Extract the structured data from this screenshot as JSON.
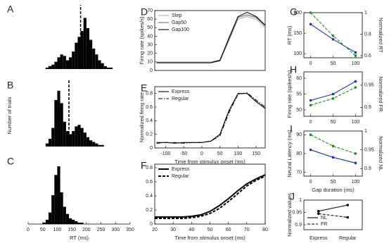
{
  "chart_data": [
    {
      "type": "histogram",
      "label": "A",
      "color": "#000000",
      "bins": [
        0,
        10,
        20,
        30,
        40,
        50,
        60,
        70,
        80,
        90,
        100,
        110,
        120,
        130,
        140,
        150,
        160,
        170,
        180,
        190,
        200,
        210,
        220,
        230,
        240,
        250,
        260,
        270,
        280,
        290,
        300,
        310,
        320,
        330,
        340,
        350
      ],
      "counts": [
        0,
        0,
        0,
        0,
        0,
        0,
        1,
        2,
        3,
        5,
        8,
        10,
        9,
        6,
        8,
        12,
        18,
        22,
        26,
        35,
        28,
        20,
        14,
        10,
        6,
        4,
        2,
        1,
        1,
        0,
        0,
        0,
        0,
        0,
        0
      ],
      "xlim": [
        0,
        350
      ],
      "ylim": [
        0,
        40
      ],
      "vline": 180
    },
    {
      "type": "histogram",
      "label": "B",
      "color": "#000000",
      "ylabel": "Number of trials",
      "bins": [
        0,
        10,
        20,
        30,
        40,
        50,
        60,
        70,
        80,
        90,
        100,
        110,
        120,
        130,
        140,
        150,
        160,
        170,
        180,
        190,
        200,
        210,
        220,
        230,
        240,
        250,
        260,
        270,
        280,
        290,
        300,
        310,
        320,
        330,
        340,
        350
      ],
      "counts": [
        0,
        0,
        0,
        0,
        0,
        0,
        2,
        5,
        12,
        30,
        36,
        28,
        16,
        10,
        8,
        10,
        13,
        14,
        12,
        9,
        6,
        4,
        3,
        2,
        1,
        1,
        0,
        0,
        0,
        0,
        0,
        0,
        0,
        0,
        0
      ],
      "xlim": [
        0,
        350
      ],
      "ylim": [
        0,
        40
      ],
      "vline": 140
    },
    {
      "type": "histogram",
      "label": "C",
      "color": "#000000",
      "xlabel": "RT (ms)",
      "bins": [
        0,
        10,
        20,
        30,
        40,
        50,
        60,
        70,
        80,
        90,
        100,
        110,
        120,
        130,
        140,
        150,
        160,
        170,
        180,
        190,
        200,
        210,
        220,
        230,
        240,
        250,
        260,
        270,
        280,
        290,
        300,
        310,
        320,
        330,
        340,
        350
      ],
      "counts": [
        0,
        0,
        0,
        0,
        0,
        1,
        3,
        8,
        20,
        34,
        40,
        22,
        12,
        7,
        4,
        3,
        2,
        1,
        1,
        0,
        0,
        0,
        0,
        0,
        0,
        0,
        0,
        0,
        0,
        0,
        0,
        0,
        0,
        0,
        0
      ],
      "xlim": [
        0,
        350
      ],
      "ylim": [
        0,
        42
      ],
      "xticks": [
        0,
        50,
        100,
        150,
        200,
        250,
        300,
        350
      ]
    },
    {
      "type": "line",
      "label": "D",
      "ylabel": "Firing rate (spikes/s)",
      "legend": "upper left",
      "x": [
        -125,
        -100,
        -75,
        -50,
        -25,
        0,
        25,
        50,
        75,
        100,
        125,
        150,
        175
      ],
      "xlim": [
        -130,
        175
      ],
      "ylim": [
        0,
        70
      ],
      "yticks": [
        0,
        10,
        20,
        30,
        40,
        50,
        60,
        70
      ],
      "series": [
        {
          "name": "Step",
          "color": "#b0b0b0",
          "dash": "solid",
          "values": [
            10,
            10,
            10,
            10,
            10,
            10,
            10,
            12,
            35,
            60,
            63,
            60,
            50
          ]
        },
        {
          "name": "Gap50",
          "color": "#707070",
          "dash": "solid",
          "values": [
            9,
            9,
            9,
            9,
            9,
            9,
            9,
            11,
            36,
            62,
            65,
            62,
            52
          ]
        },
        {
          "name": "Gap100",
          "color": "#000000",
          "dash": "solid",
          "values": [
            9,
            9,
            9,
            9,
            9,
            9,
            9,
            12,
            38,
            63,
            68,
            63,
            53
          ]
        }
      ]
    },
    {
      "type": "line",
      "label": "E",
      "ylabel": "Normalized firing rate",
      "xlabel": "Time from stimulus onset (ms)",
      "legend": "upper left",
      "x": [
        -125,
        -100,
        -75,
        -50,
        -25,
        0,
        25,
        50,
        75,
        100,
        125,
        150,
        175
      ],
      "xlim": [
        -130,
        175
      ],
      "ylim": [
        0,
        0.9
      ],
      "yticks": [
        0,
        0.2,
        0.4,
        0.6,
        0.8
      ],
      "xticks": [
        -100,
        -50,
        0,
        50,
        100,
        150
      ],
      "series": [
        {
          "name": "Express",
          "color": "#000000",
          "dash": "solid",
          "values": [
            0.08,
            0.08,
            0.07,
            0.08,
            0.08,
            0.08,
            0.1,
            0.2,
            0.55,
            0.8,
            0.8,
            0.68,
            0.58
          ]
        },
        {
          "name": "Regular",
          "color": "#000000",
          "dash": "dashdot",
          "values": [
            0.07,
            0.08,
            0.08,
            0.07,
            0.08,
            0.08,
            0.1,
            0.18,
            0.52,
            0.79,
            0.81,
            0.7,
            0.6
          ]
        }
      ]
    },
    {
      "type": "line",
      "label": "F",
      "xlabel": "Time from stimulus onset (ms)",
      "legend": "upper left",
      "linewidth": 2,
      "x": [
        20,
        25,
        30,
        35,
        40,
        45,
        50,
        55,
        60,
        65,
        70,
        75,
        80
      ],
      "xlim": [
        20,
        80
      ],
      "ylim": [
        0,
        0.85
      ],
      "yticks": [
        0,
        0.2,
        0.4,
        0.6,
        0.8
      ],
      "xticks": [
        20,
        30,
        40,
        50,
        60,
        70,
        80
      ],
      "series": [
        {
          "name": "Express",
          "color": "#000000",
          "dash": "solid",
          "values": [
            0.1,
            0.1,
            0.1,
            0.1,
            0.11,
            0.13,
            0.18,
            0.26,
            0.36,
            0.47,
            0.57,
            0.64,
            0.7
          ]
        },
        {
          "name": "Regular",
          "color": "#000000",
          "dash": "dashed",
          "values": [
            0.08,
            0.08,
            0.08,
            0.08,
            0.09,
            0.11,
            0.15,
            0.22,
            0.32,
            0.43,
            0.54,
            0.62,
            0.68
          ]
        }
      ]
    },
    {
      "type": "line",
      "label": "G",
      "ylabel": "RT (ms)",
      "y2label": "Normalized RT",
      "marker": "circle",
      "x": [
        0,
        50,
        100
      ],
      "xlim": [
        -15,
        115
      ],
      "xticks": [
        0,
        50,
        100
      ],
      "ylim": [
        90,
        200
      ],
      "yticks": [
        100,
        150,
        200
      ],
      "y2lim": [
        0.58,
        1
      ],
      "y2ticks": [
        0.6,
        0.8,
        1
      ],
      "series": [
        {
          "color": "#2233aa",
          "dash": "solid",
          "values": [
            172,
            135,
            103
          ]
        },
        {
          "color": "#228822",
          "dash": "dashed",
          "axis": "y2",
          "values": [
            1,
            0.785,
            0.6
          ]
        }
      ]
    },
    {
      "type": "line",
      "label": "H",
      "ylabel": "Firing rate (spikes/s)",
      "y2label": "Normalized FR",
      "marker": "circle",
      "x": [
        0,
        50,
        100
      ],
      "xlim": [
        -15,
        115
      ],
      "xticks": [
        0,
        50,
        100
      ],
      "ylim": [
        48,
        62
      ],
      "yticks": [
        50,
        55,
        60
      ],
      "y2lim": [
        0.88,
        0.98
      ],
      "y2ticks": [
        0.9,
        0.95
      ],
      "series": [
        {
          "color": "#2233aa",
          "dash": "solid",
          "values": [
            53,
            55,
            59
          ]
        },
        {
          "color": "#228822",
          "dash": "dashed",
          "axis": "y2",
          "values": [
            0.905,
            0.92,
            0.945
          ]
        }
      ]
    },
    {
      "type": "line",
      "label": "I",
      "ylabel": "Neural Latency (ms)",
      "y2label": "Normalized NL",
      "xlabel": "Gap duration (ms)",
      "marker": "circle",
      "x": [
        0,
        50,
        100
      ],
      "xlim": [
        -15,
        115
      ],
      "xticks": [
        0,
        50,
        100
      ],
      "ylim": [
        68,
        92
      ],
      "yticks": [
        70,
        80,
        90
      ],
      "y2lim": [
        0.88,
        1
      ],
      "y2ticks": [
        0.9,
        0.95,
        1
      ],
      "series": [
        {
          "color": "#2233aa",
          "dash": "solid",
          "values": [
            82,
            78,
            75
          ]
        },
        {
          "color": "#228822",
          "dash": "dashed",
          "axis": "y2",
          "values": [
            0.99,
            0.96,
            0.94
          ]
        }
      ]
    },
    {
      "type": "line",
      "label": "J",
      "ylabel": "Normalized values",
      "legend": "lower left",
      "marker": "circle",
      "categories": [
        "Express",
        "Regular"
      ],
      "ylim": [
        0.88,
        1
      ],
      "yticks": [
        0.9,
        0.95,
        1
      ],
      "series": [
        {
          "name": "NL",
          "color": "#000000",
          "dash": "solid",
          "values": [
            0.955,
            0.98
          ]
        },
        {
          "name": "FR",
          "color": "#000000",
          "dash": "dashed",
          "values": [
            0.945,
            0.93
          ]
        }
      ]
    }
  ]
}
